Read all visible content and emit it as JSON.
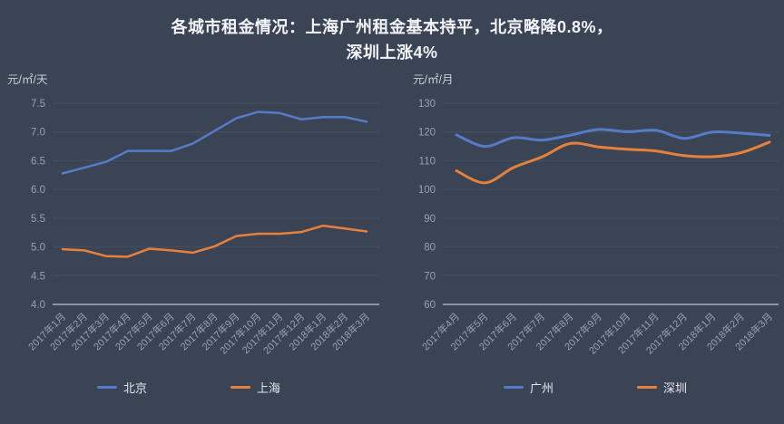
{
  "page": {
    "background": "#3b4454",
    "gridline_color": "#47505f",
    "axisline_color": "#a9b1be",
    "tick_label_color": "#98a1b0",
    "unit_label_color": "#c8ced8",
    "title_color": "#f2f4f8"
  },
  "title": {
    "line1": "各城市租金情况：上海广州租金基本持平，北京略降0.8%，",
    "line2": "深圳上涨4%",
    "full": "各城市租金情况：上海广州租金基本持平，北京略降0.8%，深圳上涨4%"
  },
  "chart_data": [
    {
      "type": "line",
      "title": "",
      "unit_label": "元/㎡/天",
      "xlabel": "",
      "ylabel": "元/㎡/天",
      "ylim": [
        4.0,
        7.5
      ],
      "ytick_step": 0.5,
      "ytick_decimals": 1,
      "grid": true,
      "smooth": false,
      "legend_position": "bottom",
      "categories": [
        "2017年1月",
        "2017年2月",
        "2017年3月",
        "2017年4月",
        "2017年5月",
        "2017年6月",
        "2017年7月",
        "2017年8月",
        "2017年9月",
        "2017年10月",
        "2017年11月",
        "2017年12月",
        "2018年1月",
        "2018年2月",
        "2018年3月"
      ],
      "series": [
        {
          "name": "北京",
          "color": "#567bc8",
          "values": [
            6.28,
            6.38,
            6.48,
            6.67,
            6.67,
            6.67,
            6.8,
            7.02,
            7.24,
            7.35,
            7.33,
            7.22,
            7.26,
            7.26,
            7.18
          ]
        },
        {
          "name": "上海",
          "color": "#e5813d",
          "values": [
            4.96,
            4.94,
            4.84,
            4.83,
            4.97,
            4.94,
            4.9,
            5.01,
            5.19,
            5.23,
            5.23,
            5.26,
            5.37,
            5.32,
            5.27
          ]
        }
      ]
    },
    {
      "type": "line",
      "title": "",
      "unit_label": "元/㎡/月",
      "xlabel": "",
      "ylabel": "元/㎡/月",
      "ylim": [
        60,
        130
      ],
      "ytick_step": 10,
      "ytick_decimals": 0,
      "grid": true,
      "smooth": true,
      "legend_position": "bottom",
      "categories": [
        "2017年4月",
        "2017年5月",
        "2017年6月",
        "2017年7月",
        "2017年8月",
        "2017年9月",
        "2017年10月",
        "2017年11月",
        "2017年12月",
        "2018年1月",
        "2018年2月",
        "2018年3月"
      ],
      "series": [
        {
          "name": "广州",
          "color": "#567bc8",
          "values": [
            119.0,
            115.0,
            118.0,
            117.2,
            118.9,
            120.9,
            120.1,
            120.6,
            117.8,
            120.0,
            119.6,
            118.8
          ]
        },
        {
          "name": "深圳",
          "color": "#e5813d",
          "values": [
            106.5,
            102.3,
            107.6,
            111.3,
            116.0,
            114.8,
            114.0,
            113.4,
            111.8,
            111.4,
            112.8,
            116.5
          ]
        }
      ]
    }
  ]
}
